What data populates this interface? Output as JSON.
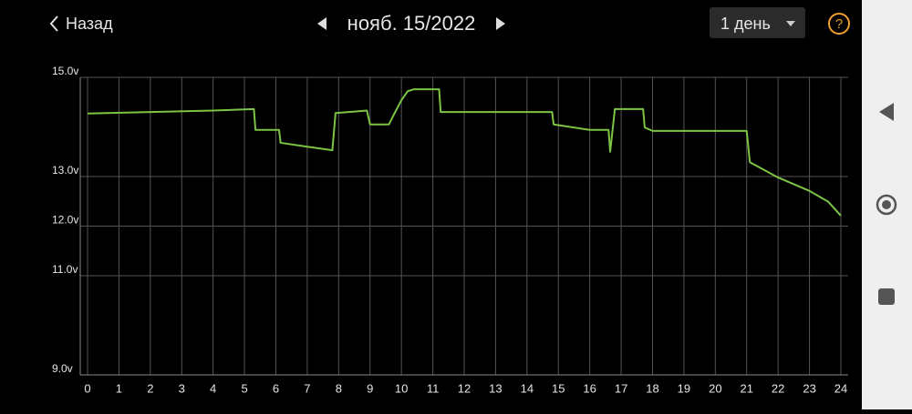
{
  "header": {
    "back": "Назад",
    "date": "нояб. 15/2022",
    "period": "1 день",
    "help": "?"
  },
  "chart_data": {
    "type": "line",
    "x": [
      0,
      2,
      4,
      5.3,
      5.35,
      6.1,
      6.15,
      7,
      7.8,
      7.9,
      8.9,
      9.0,
      9.6,
      9.8,
      10.0,
      10.2,
      10.4,
      11.2,
      11.25,
      14.8,
      14.85,
      16.0,
      16.6,
      16.65,
      16.8,
      17.7,
      17.75,
      18.0,
      21.0,
      21.1,
      22.0,
      23.0,
      23.6,
      24.0
    ],
    "series": [
      {
        "color": "#7cc443",
        "values": [
          14.27,
          14.3,
          14.33,
          14.36,
          13.94,
          13.94,
          13.68,
          13.6,
          13.53,
          14.28,
          14.33,
          14.05,
          14.05,
          14.3,
          14.54,
          14.72,
          14.76,
          14.76,
          14.3,
          14.3,
          14.05,
          13.94,
          13.94,
          13.5,
          14.36,
          14.36,
          13.99,
          13.92,
          13.92,
          13.29,
          12.98,
          12.71,
          12.49,
          12.21
        ]
      }
    ],
    "xlim": [
      0,
      24
    ],
    "xticks": [
      0,
      1,
      2,
      3,
      4,
      5,
      6,
      7,
      8,
      9,
      10,
      11,
      12,
      13,
      14,
      15,
      16,
      17,
      18,
      19,
      20,
      21,
      22,
      23,
      24
    ],
    "ylim": [
      9,
      15
    ],
    "yticks": [
      {
        "value": 9,
        "label": "9.0v"
      },
      {
        "value": 11,
        "label": "11.0v"
      },
      {
        "value": 12,
        "label": "12.0v"
      },
      {
        "value": 13,
        "label": "13.0v"
      },
      {
        "value": 15,
        "label": "15.0v"
      }
    ],
    "grid": true
  }
}
